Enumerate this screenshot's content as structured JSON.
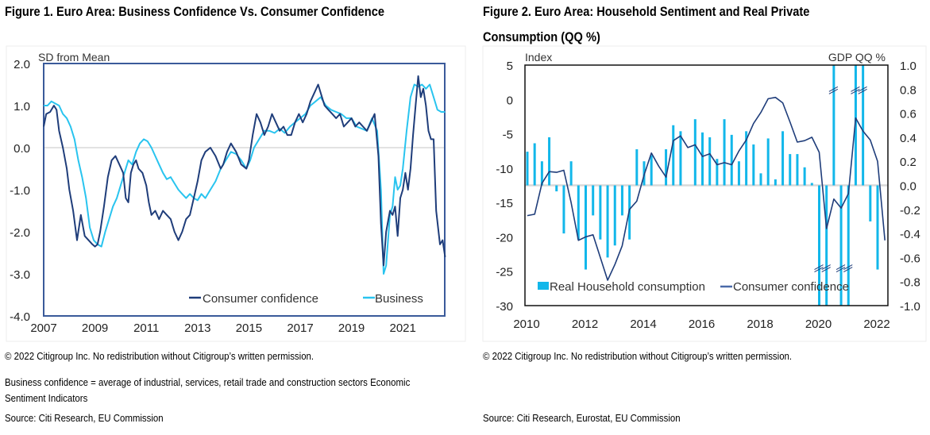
{
  "figures": [
    {
      "title": "Figure 1. Euro Area: Business Confidence Vs. Consumer Confidence",
      "copyright": "© 2022 Citigroup Inc. No redistribution without Citigroup’s written permission.",
      "footnote_line1": "Business confidence = average of industrial, services, retail trade and construction sectors Economic",
      "footnote_line2": "Sentiment Indicators",
      "source": "Source: Citi Research, EU Commission"
    },
    {
      "title_line1": "Figure 2. Euro Area: Household Sentiment and Real Private",
      "title_line2": "Consumption (QQ %)",
      "copyright": "© 2022 Citigroup Inc. No redistribution without Citigroup’s written permission.",
      "source": "Source: Citi Research, Eurostat, EU Commission"
    }
  ],
  "colors": {
    "consumer": "#1f3d7a",
    "business": "#29c4ef",
    "bars": "#12b7ea",
    "frame1": "#3a5a9a",
    "frame2": "#111111",
    "zero": "#d9d9d9"
  },
  "chart_data": [
    {
      "type": "line",
      "title": "Figure 1. Euro Area: Business Confidence Vs. Consumer Confidence",
      "ylabel": "SD from Mean",
      "xlabel": "",
      "ylim": [
        -4.0,
        2.0
      ],
      "yticks": [
        "2.0",
        "1.0",
        "0.0",
        "-1.0",
        "-2.0",
        "-3.0",
        "-4.0"
      ],
      "xlim": [
        2007.0,
        2022.7
      ],
      "xticks": [
        "2007",
        "2009",
        "2011",
        "2013",
        "2015",
        "2017",
        "2019",
        "2021"
      ],
      "legend": "bottom-right",
      "grid": false,
      "series": [
        {
          "name": "Consumer confidence",
          "x": [
            2007.0,
            2007.1,
            2007.25,
            2007.4,
            2007.5,
            2007.6,
            2007.75,
            2007.9,
            2008.0,
            2008.15,
            2008.3,
            2008.45,
            2008.6,
            2008.75,
            2008.9,
            2009.0,
            2009.1,
            2009.2,
            2009.35,
            2009.5,
            2009.65,
            2009.8,
            2009.95,
            2010.1,
            2010.2,
            2010.3,
            2010.4,
            2010.5,
            2010.6,
            2010.7,
            2010.85,
            2011.0,
            2011.1,
            2011.2,
            2011.35,
            2011.5,
            2011.65,
            2011.8,
            2011.95,
            2012.1,
            2012.25,
            2012.4,
            2012.55,
            2012.7,
            2012.85,
            2013.0,
            2013.15,
            2013.3,
            2013.5,
            2013.7,
            2013.9,
            2014.0,
            2014.15,
            2014.3,
            2014.5,
            2014.7,
            2014.9,
            2015.0,
            2015.15,
            2015.3,
            2015.45,
            2015.6,
            2015.75,
            2015.9,
            2016.05,
            2016.2,
            2016.35,
            2016.5,
            2016.65,
            2016.8,
            2016.95,
            2017.1,
            2017.25,
            2017.4,
            2017.55,
            2017.7,
            2017.8,
            2017.95,
            2018.1,
            2018.25,
            2018.4,
            2018.55,
            2018.7,
            2018.85,
            2019.0,
            2019.15,
            2019.3,
            2019.45,
            2019.6,
            2019.75,
            2019.9,
            2020.05,
            2020.15,
            2020.25,
            2020.35,
            2020.5,
            2020.6,
            2020.7,
            2020.8,
            2020.9,
            2021.0,
            2021.1,
            2021.2,
            2021.3,
            2021.4,
            2021.5,
            2021.6,
            2021.7,
            2021.8,
            2021.9,
            2022.0,
            2022.1,
            2022.2,
            2022.3,
            2022.45,
            2022.55,
            2022.65
          ],
          "values": [
            0.5,
            0.8,
            0.85,
            1.0,
            0.9,
            0.4,
            0.0,
            -0.5,
            -1.0,
            -1.5,
            -2.2,
            -1.6,
            -2.1,
            -2.2,
            -2.3,
            -2.35,
            -2.3,
            -2.0,
            -1.4,
            -0.7,
            -0.3,
            -0.2,
            -0.4,
            -0.6,
            -1.2,
            -1.3,
            -0.6,
            -0.4,
            -0.3,
            -0.5,
            -0.6,
            -0.9,
            -1.3,
            -1.6,
            -1.5,
            -1.7,
            -1.5,
            -1.6,
            -1.7,
            -2.0,
            -2.2,
            -2.0,
            -1.7,
            -1.6,
            -1.2,
            -0.8,
            -0.3,
            -0.1,
            0.0,
            -0.2,
            -0.5,
            -0.4,
            -0.1,
            0.1,
            -0.1,
            -0.4,
            -0.5,
            -0.3,
            0.3,
            0.8,
            0.6,
            0.3,
            0.5,
            0.8,
            0.6,
            0.4,
            0.5,
            0.3,
            0.3,
            0.6,
            0.8,
            0.6,
            0.8,
            1.1,
            1.3,
            1.5,
            1.3,
            1.0,
            0.9,
            0.8,
            0.7,
            0.8,
            0.5,
            0.6,
            0.7,
            0.5,
            0.6,
            0.5,
            0.4,
            0.6,
            0.8,
            -0.2,
            -1.8,
            -2.8,
            -2.0,
            -1.5,
            -1.6,
            -1.4,
            -2.1,
            -1.2,
            -1.0,
            -0.6,
            -1.0,
            -0.5,
            0.3,
            1.0,
            1.7,
            1.2,
            1.4,
            1.0,
            0.4,
            0.2,
            0.2,
            -1.5,
            -2.3,
            -2.2,
            -2.6
          ]
        },
        {
          "name": "Business",
          "x": [
            2007.0,
            2007.15,
            2007.3,
            2007.45,
            2007.6,
            2007.75,
            2007.9,
            2008.05,
            2008.2,
            2008.35,
            2008.5,
            2008.65,
            2008.8,
            2008.95,
            2009.1,
            2009.25,
            2009.4,
            2009.55,
            2009.7,
            2009.85,
            2010.0,
            2010.15,
            2010.3,
            2010.45,
            2010.6,
            2010.75,
            2010.9,
            2011.05,
            2011.2,
            2011.35,
            2011.5,
            2011.65,
            2011.8,
            2011.95,
            2012.1,
            2012.25,
            2012.4,
            2012.55,
            2012.7,
            2012.85,
            2013.0,
            2013.15,
            2013.3,
            2013.5,
            2013.7,
            2013.9,
            2014.1,
            2014.3,
            2014.5,
            2014.7,
            2014.9,
            2015.05,
            2015.2,
            2015.4,
            2015.6,
            2015.8,
            2016.0,
            2016.2,
            2016.4,
            2016.6,
            2016.8,
            2017.0,
            2017.2,
            2017.4,
            2017.6,
            2017.8,
            2018.0,
            2018.2,
            2018.4,
            2018.6,
            2018.8,
            2019.0,
            2019.2,
            2019.4,
            2019.6,
            2019.8,
            2020.0,
            2020.15,
            2020.25,
            2020.35,
            2020.5,
            2020.6,
            2020.7,
            2020.8,
            2020.9,
            2021.0,
            2021.15,
            2021.3,
            2021.45,
            2021.6,
            2021.75,
            2021.9,
            2022.05,
            2022.2,
            2022.35,
            2022.5,
            2022.65
          ],
          "values": [
            1.0,
            1.0,
            1.1,
            1.05,
            1.0,
            0.8,
            0.7,
            0.5,
            0.2,
            -0.3,
            -0.7,
            -1.2,
            -1.9,
            -2.2,
            -2.3,
            -2.35,
            -2.0,
            -1.7,
            -1.4,
            -1.2,
            -0.9,
            -0.6,
            -0.3,
            -0.4,
            -0.1,
            0.1,
            0.2,
            0.15,
            0.0,
            -0.2,
            -0.4,
            -0.6,
            -0.75,
            -0.7,
            -0.85,
            -1.0,
            -1.1,
            -1.2,
            -1.1,
            -1.2,
            -1.25,
            -1.1,
            -1.2,
            -1.0,
            -0.8,
            -0.5,
            -0.3,
            -0.1,
            -0.15,
            -0.3,
            -0.5,
            -0.3,
            0.0,
            0.2,
            0.4,
            0.4,
            0.35,
            0.45,
            0.35,
            0.5,
            0.6,
            0.7,
            0.8,
            1.0,
            1.1,
            1.2,
            1.0,
            0.9,
            0.85,
            0.8,
            0.7,
            0.7,
            0.5,
            0.45,
            0.4,
            0.7,
            0.4,
            -1.0,
            -3.0,
            -2.8,
            -1.6,
            -1.4,
            -0.7,
            -1.0,
            -0.9,
            -0.5,
            0.4,
            1.2,
            1.5,
            1.45,
            1.5,
            1.4,
            1.5,
            1.2,
            0.9,
            0.85,
            0.85
          ]
        }
      ]
    },
    {
      "type": "bar+line",
      "title": "Figure 2. Euro Area: Household Sentiment and Real Private Consumption (QQ %)",
      "ylabel_left": "Index",
      "ylabel_right": "GDP QQ %",
      "ylim_left": [
        -30,
        5
      ],
      "yticks_left": [
        "5",
        "0",
        "-5",
        "-10",
        "-15",
        "-20",
        "-25",
        "-30"
      ],
      "ylim_right": [
        -1.0,
        1.0
      ],
      "yticks_right": [
        "1.0",
        "0.8",
        "0.6",
        "0.4",
        "0.2",
        "0.0",
        "-0.2",
        "-0.4",
        "-0.6",
        "-0.8",
        "-1.0"
      ],
      "xticks": [
        "2010",
        "2012",
        "2014",
        "2016",
        "2018",
        "2020",
        "2022"
      ],
      "xlim": [
        2010.0,
        2022.4
      ],
      "legend": "bottom",
      "grid": false,
      "categories": [
        "2010Q1",
        "2010Q2",
        "2010Q3",
        "2010Q4",
        "2011Q1",
        "2011Q2",
        "2011Q3",
        "2011Q4",
        "2012Q1",
        "2012Q2",
        "2012Q3",
        "2012Q4",
        "2013Q1",
        "2013Q2",
        "2013Q3",
        "2013Q4",
        "2014Q1",
        "2014Q2",
        "2014Q3",
        "2014Q4",
        "2015Q1",
        "2015Q2",
        "2015Q3",
        "2015Q4",
        "2016Q1",
        "2016Q2",
        "2016Q3",
        "2016Q4",
        "2017Q1",
        "2017Q2",
        "2017Q3",
        "2017Q4",
        "2018Q1",
        "2018Q2",
        "2018Q3",
        "2018Q4",
        "2019Q1",
        "2019Q2",
        "2019Q3",
        "2019Q4",
        "2020Q1",
        "2020Q2",
        "2020Q3",
        "2020Q4",
        "2021Q1",
        "2021Q2",
        "2021Q3",
        "2021Q4",
        "2022Q1",
        "2022Q2"
      ],
      "series": [
        {
          "name": "Real Household consumption",
          "axis": "right",
          "type": "bar",
          "values": [
            0.28,
            0.35,
            0.2,
            0.4,
            -0.05,
            -0.4,
            0.2,
            -0.45,
            -0.7,
            -0.25,
            -0.45,
            -0.6,
            -0.5,
            -0.25,
            -0.45,
            0.3,
            0.2,
            0.25,
            0.0,
            0.3,
            0.5,
            0.45,
            0.0,
            0.55,
            0.44,
            0.4,
            0.22,
            0.55,
            0.42,
            0.2,
            0.45,
            0.34,
            0.1,
            0.39,
            0.05,
            0.45,
            0.26,
            0.26,
            0.15,
            0.02,
            -4.5,
            -12.0,
            14.0,
            -3.0,
            -2.2,
            3.9,
            4.0,
            -0.3,
            -0.7,
            0.0
          ],
          "broken_axis_quarters": [
            "2020Q1",
            "2020Q2",
            "2020Q3",
            "2020Q4",
            "2021Q1",
            "2021Q2",
            "2021Q3"
          ]
        },
        {
          "name": "Consumer confidence",
          "axis": "left",
          "type": "line",
          "values": [
            -16.9,
            -16.7,
            -12.2,
            -10.5,
            -10.6,
            -10.3,
            -15.0,
            -20.5,
            -20.0,
            -19.7,
            -23.0,
            -26.3,
            -24.0,
            -21.3,
            -16.0,
            -14.8,
            -11.0,
            -7.8,
            -9.7,
            -11.3,
            -6.0,
            -5.3,
            -7.0,
            -6.6,
            -8.3,
            -7.9,
            -9.5,
            -9.2,
            -9.5,
            -7.5,
            -5.9,
            -3.5,
            -1.9,
            0.1,
            0.3,
            -0.5,
            -3.3,
            -6.2,
            -6.0,
            -5.5,
            -7.7,
            -18.8,
            -14.5,
            -15.8,
            -13.7,
            -2.7,
            -4.6,
            -5.9,
            -9.0,
            -20.5
          ]
        }
      ]
    }
  ]
}
